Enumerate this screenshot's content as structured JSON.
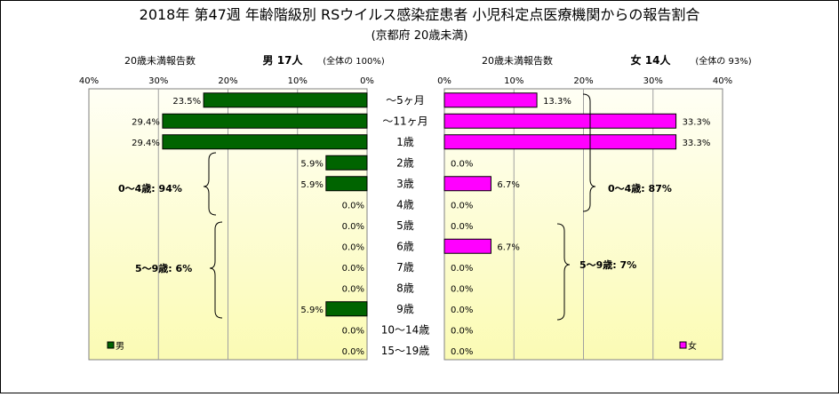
{
  "title": "2018年 第47週 年齢階級別 RSウイルス感染症患者 小児科定点医療機関からの報告割合",
  "subtitle": "(京都府 20歳未満)",
  "male_header": {
    "label": "20歳未満報告数",
    "title": "男 17人",
    "total": "(全体の 100%)"
  },
  "female_header": {
    "label": "20歳未満報告数",
    "title": "女 14人",
    "total": "(全体の 93%)"
  },
  "male_ticks": [
    "40%",
    "30%",
    "20%",
    "10%",
    "0%"
  ],
  "female_ticks": [
    "0%",
    "10%",
    "20%",
    "30%",
    "40%"
  ],
  "annotations": {
    "male_0_4": "0〜4歳: 94%",
    "male_5_9": "5〜9歳: 6%",
    "female_0_4": "0〜4歳: 87%",
    "female_5_9": "5〜9歳: 7%"
  },
  "legend": {
    "male": "男",
    "female": "女"
  },
  "colors": {
    "male": "#006400",
    "female": "#ff00ff",
    "bg_top": "#fffff5",
    "bg_bottom": "#fbfbb4"
  },
  "chart_data": {
    "type": "bar",
    "orientation": "horizontal-butterfly",
    "categories": [
      "〜5ヶ月",
      "〜11ヶ月",
      "1歳",
      "2歳",
      "3歳",
      "4歳",
      "5歳",
      "6歳",
      "7歳",
      "8歳",
      "9歳",
      "10〜14歳",
      "15〜19歳"
    ],
    "series": [
      {
        "name": "男",
        "values": [
          23.5,
          29.4,
          29.4,
          5.9,
          5.9,
          0.0,
          0.0,
          0.0,
          0.0,
          0.0,
          5.9,
          0.0,
          0.0
        ],
        "labels": [
          "23.5%",
          "29.4%",
          "29.4%",
          "5.9%",
          "5.9%",
          "0.0%",
          "0.0%",
          "0.0%",
          "0.0%",
          "0.0%",
          "5.9%",
          "0.0%",
          "0.0%"
        ]
      },
      {
        "name": "女",
        "values": [
          13.3,
          33.3,
          33.3,
          0.0,
          6.7,
          0.0,
          0.0,
          6.7,
          0.0,
          0.0,
          0.0,
          0.0,
          0.0
        ],
        "labels": [
          "13.3%",
          "33.3%",
          "33.3%",
          "0.0%",
          "6.7%",
          "0.0%",
          "0.0%",
          "6.7%",
          "0.0%",
          "0.0%",
          "0.0%",
          "0.0%",
          "0.0%"
        ]
      }
    ],
    "xlim": [
      0,
      40
    ],
    "grid": true,
    "legend_position": "bottom"
  }
}
